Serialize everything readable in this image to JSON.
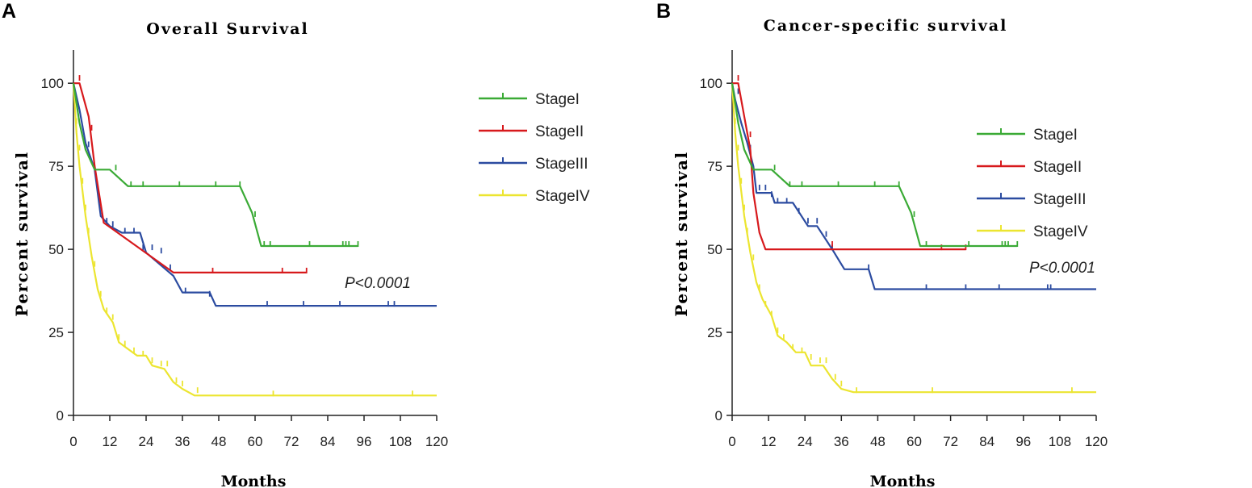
{
  "colors": {
    "StageI": "#3aaa35",
    "StageII": "#d7191c",
    "StageIII": "#2b4ba0",
    "StageIV": "#ece530"
  },
  "chart_data": [
    {
      "panel": "A",
      "type": "line",
      "title": "Overall Survival",
      "xlabel": "Months",
      "ylabel": "Percent survival",
      "xlim": [
        0,
        120
      ],
      "ylim": [
        0,
        110
      ],
      "xticks": [
        0,
        12,
        24,
        36,
        48,
        60,
        72,
        84,
        96,
        108,
        120
      ],
      "yticks": [
        0,
        25,
        50,
        75,
        100
      ],
      "legend_position": "right",
      "annotation": "P<0.0001",
      "series": [
        {
          "name": "StageI",
          "color_key": "StageI",
          "points": [
            [
              0,
              100
            ],
            [
              2,
              88
            ],
            [
              4,
              80
            ],
            [
              7,
              74
            ],
            [
              12,
              74
            ],
            [
              18,
              69
            ],
            [
              55,
              69
            ],
            [
              59,
              61
            ],
            [
              62,
              51
            ],
            [
              94,
              51
            ]
          ],
          "censors": [
            [
              14,
              74
            ],
            [
              19,
              69
            ],
            [
              23,
              69
            ],
            [
              35,
              69
            ],
            [
              47,
              69
            ],
            [
              55,
              69
            ],
            [
              60,
              60
            ],
            [
              63,
              51
            ],
            [
              65,
              51
            ],
            [
              78,
              51
            ],
            [
              89,
              51
            ],
            [
              90,
              51
            ],
            [
              91,
              51
            ],
            [
              94,
              51
            ]
          ]
        },
        {
          "name": "StageII",
          "color_key": "StageII",
          "points": [
            [
              0,
              100
            ],
            [
              2,
              100
            ],
            [
              5,
              90
            ],
            [
              7,
              75
            ],
            [
              10,
              58
            ],
            [
              33,
              43
            ],
            [
              77,
              43
            ]
          ],
          "censors": [
            [
              2,
              101
            ],
            [
              6,
              86
            ],
            [
              46,
              43
            ],
            [
              69,
              43
            ],
            [
              77,
              43
            ]
          ]
        },
        {
          "name": "StageIII",
          "color_key": "StageIII",
          "points": [
            [
              0,
              100
            ],
            [
              2,
              92
            ],
            [
              4,
              82
            ],
            [
              7,
              74
            ],
            [
              9,
              60
            ],
            [
              12,
              57
            ],
            [
              16,
              55
            ],
            [
              22,
              55
            ],
            [
              24,
              49
            ],
            [
              33,
              42
            ],
            [
              36,
              37
            ],
            [
              45,
              37
            ],
            [
              47,
              33
            ],
            [
              120,
              33
            ]
          ],
          "censors": [
            [
              5,
              81
            ],
            [
              11,
              58
            ],
            [
              13,
              57
            ],
            [
              17,
              55
            ],
            [
              20,
              55
            ],
            [
              23,
              50
            ],
            [
              26,
              50
            ],
            [
              29,
              49
            ],
            [
              32,
              44
            ],
            [
              37,
              37
            ],
            [
              45,
              36
            ],
            [
              64,
              33
            ],
            [
              76,
              33
            ],
            [
              88,
              33
            ],
            [
              104,
              33
            ],
            [
              106,
              33
            ]
          ]
        },
        {
          "name": "StageIV",
          "color_key": "StageIV",
          "points": [
            [
              0,
              100
            ],
            [
              1,
              85
            ],
            [
              2,
              75
            ],
            [
              4,
              60
            ],
            [
              6,
              48
            ],
            [
              8,
              38
            ],
            [
              10,
              32
            ],
            [
              13,
              28
            ],
            [
              15,
              22
            ],
            [
              18,
              20
            ],
            [
              21,
              18
            ],
            [
              24,
              18
            ],
            [
              26,
              15
            ],
            [
              30,
              14
            ],
            [
              33,
              10
            ],
            [
              36,
              8
            ],
            [
              40,
              6
            ],
            [
              120,
              6
            ]
          ],
          "censors": [
            [
              1,
              88
            ],
            [
              2,
              80
            ],
            [
              3,
              70
            ],
            [
              4,
              62
            ],
            [
              5,
              55
            ],
            [
              7,
              45
            ],
            [
              9,
              36
            ],
            [
              11,
              31
            ],
            [
              13,
              29
            ],
            [
              15,
              23
            ],
            [
              17,
              21
            ],
            [
              20,
              19
            ],
            [
              23,
              18
            ],
            [
              26,
              16
            ],
            [
              29,
              15
            ],
            [
              31,
              15
            ],
            [
              34,
              10
            ],
            [
              36,
              9
            ],
            [
              41,
              7
            ],
            [
              66,
              6
            ],
            [
              112,
              6
            ]
          ]
        }
      ]
    },
    {
      "panel": "B",
      "type": "line",
      "title": "Cancer-specific survival",
      "xlabel": "Months",
      "ylabel": "Percent survival",
      "xlim": [
        0,
        120
      ],
      "ylim": [
        0,
        110
      ],
      "xticks": [
        0,
        12,
        24,
        36,
        48,
        60,
        72,
        84,
        96,
        108,
        120
      ],
      "yticks": [
        0,
        25,
        50,
        75,
        100
      ],
      "legend_position": "right",
      "annotation": "P<0.0001",
      "series": [
        {
          "name": "StageI",
          "color_key": "StageI",
          "points": [
            [
              0,
              100
            ],
            [
              2,
              88
            ],
            [
              4,
              80
            ],
            [
              7,
              74
            ],
            [
              13,
              74
            ],
            [
              19,
              69
            ],
            [
              55,
              69
            ],
            [
              59,
              61
            ],
            [
              62,
              51
            ],
            [
              94,
              51
            ]
          ],
          "censors": [
            [
              14,
              74
            ],
            [
              19,
              69
            ],
            [
              23,
              69
            ],
            [
              35,
              69
            ],
            [
              47,
              69
            ],
            [
              55,
              69
            ],
            [
              60,
              60
            ],
            [
              64,
              51
            ],
            [
              78,
              51
            ],
            [
              89,
              51
            ],
            [
              90,
              51
            ],
            [
              91,
              51
            ],
            [
              94,
              51
            ]
          ]
        },
        {
          "name": "StageII",
          "color_key": "StageII",
          "points": [
            [
              0,
              100
            ],
            [
              2,
              100
            ],
            [
              4,
              90
            ],
            [
              6,
              80
            ],
            [
              7,
              67
            ],
            [
              9,
              55
            ],
            [
              11,
              50
            ],
            [
              77,
              50
            ]
          ],
          "censors": [
            [
              2,
              101
            ],
            [
              6,
              84
            ],
            [
              33,
              51
            ],
            [
              69,
              50
            ],
            [
              77,
              50
            ]
          ]
        },
        {
          "name": "StageIII",
          "color_key": "StageIII",
          "points": [
            [
              0,
              100
            ],
            [
              1,
              95
            ],
            [
              3,
              88
            ],
            [
              5,
              82
            ],
            [
              7,
              75
            ],
            [
              8,
              67
            ],
            [
              13,
              67
            ],
            [
              14,
              64
            ],
            [
              20,
              64
            ],
            [
              25,
              57
            ],
            [
              28,
              57
            ],
            [
              33,
              50
            ],
            [
              35,
              47
            ],
            [
              37,
              44
            ],
            [
              45,
              44
            ],
            [
              47,
              38
            ],
            [
              120,
              38
            ]
          ],
          "censors": [
            [
              2,
              97
            ],
            [
              6,
              80
            ],
            [
              9,
              68
            ],
            [
              11,
              68
            ],
            [
              13,
              66
            ],
            [
              15,
              64
            ],
            [
              18,
              64
            ],
            [
              22,
              61
            ],
            [
              25,
              58
            ],
            [
              28,
              58
            ],
            [
              31,
              54
            ],
            [
              33,
              50
            ],
            [
              45,
              44
            ],
            [
              64,
              38
            ],
            [
              77,
              38
            ],
            [
              88,
              38
            ],
            [
              104,
              38
            ],
            [
              105,
              38
            ]
          ]
        },
        {
          "name": "StageIV",
          "color_key": "StageIV",
          "points": [
            [
              0,
              100
            ],
            [
              1,
              85
            ],
            [
              2,
              75
            ],
            [
              4,
              60
            ],
            [
              6,
              49
            ],
            [
              8,
              40
            ],
            [
              10,
              35
            ],
            [
              13,
              30
            ],
            [
              15,
              24
            ],
            [
              18,
              22
            ],
            [
              21,
              19
            ],
            [
              24,
              19
            ],
            [
              26,
              15
            ],
            [
              30,
              15
            ],
            [
              33,
              11
            ],
            [
              36,
              8
            ],
            [
              40,
              7
            ],
            [
              120,
              7
            ]
          ],
          "censors": [
            [
              1,
              88
            ],
            [
              2,
              80
            ],
            [
              3,
              70
            ],
            [
              4,
              62
            ],
            [
              5,
              55
            ],
            [
              7,
              47
            ],
            [
              9,
              38
            ],
            [
              11,
              33
            ],
            [
              13,
              30
            ],
            [
              15,
              25
            ],
            [
              17,
              23
            ],
            [
              20,
              20
            ],
            [
              23,
              19
            ],
            [
              26,
              17
            ],
            [
              29,
              16
            ],
            [
              31,
              16
            ],
            [
              34,
              11
            ],
            [
              36,
              9
            ],
            [
              41,
              7
            ],
            [
              66,
              7
            ],
            [
              112,
              7
            ]
          ]
        }
      ]
    }
  ]
}
